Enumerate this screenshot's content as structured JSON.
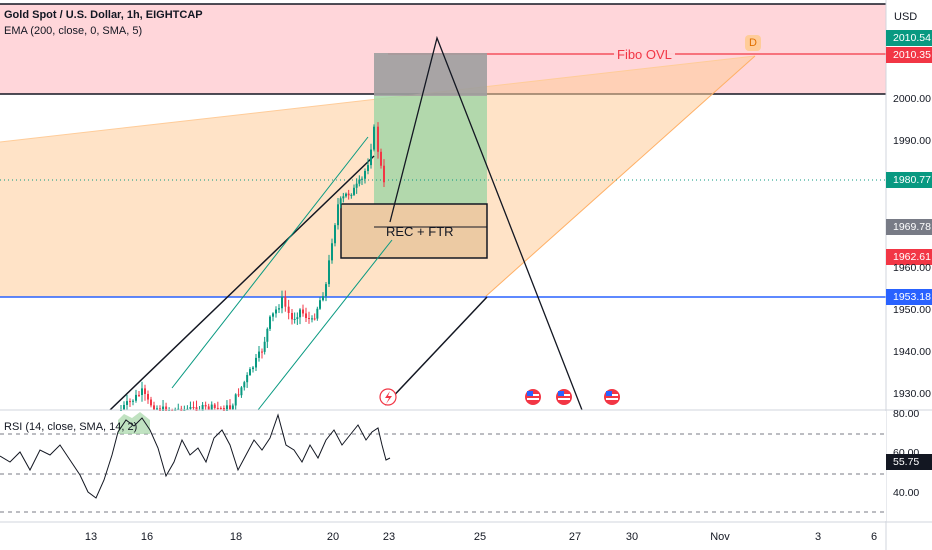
{
  "header": {
    "title": "Gold Spot / U.S. Dollar, 1h, EIGHTCAP",
    "ema": "EMA (200, close, 0, SMA, 5)"
  },
  "price_axis": {
    "currency": "USD",
    "ticks": [
      "2000.00",
      "1990.00",
      "1960.00",
      "1950.00",
      "1940.00",
      "1930.00"
    ],
    "tags": {
      "price_top": "2010.54",
      "fibo_price": "2010.35",
      "last_price": "1980.77",
      "marker_gray": "1969.78",
      "marker_red": "1962.61",
      "hline_blue": "1953.18"
    }
  },
  "rsi_axis": {
    "ticks": [
      "80.00",
      "60.00",
      "40.00"
    ],
    "value": "55.75"
  },
  "rsi": {
    "label": "RSI (14, close, SMA, 14, 2)"
  },
  "time_axis": {
    "labels": [
      "13",
      "16",
      "18",
      "20",
      "23",
      "25",
      "27",
      "30",
      "Nov",
      "3",
      "6"
    ]
  },
  "annotations": {
    "fibo": "Fibo OVL",
    "rec": "REC + FTR",
    "d_marker": "D"
  },
  "colors": {
    "up": "#089981",
    "down": "#f23645",
    "blue_line": "#2962ff",
    "last_price": "#089981",
    "gray_tag": "#787b86",
    "fibo_zone": "#ffd6da",
    "orange_zone": "#ffcc99",
    "rsi_line": "#131722"
  },
  "icons": {
    "lightning_event": "lightning-icon",
    "us_events": "us-flag-icon"
  }
}
